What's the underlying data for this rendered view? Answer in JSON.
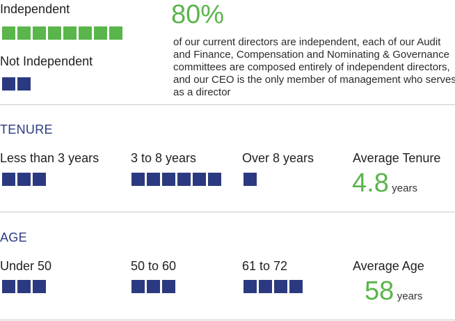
{
  "independence": {
    "independent_label": "Independent",
    "independent_count": 8,
    "not_independent_label": "Not Independent",
    "not_independent_count": 2,
    "percent": "80%",
    "description": "of our current directors are independent, each of our Audit and Finance, Compensation and Nominating & Governance committees are composed entirely of independent directors, and our CEO is the only member of management who serves as a director"
  },
  "tenure": {
    "title": "TENURE",
    "groups": [
      {
        "label": "Less than 3 years",
        "count": 3
      },
      {
        "label": "3 to 8 years",
        "count": 6
      },
      {
        "label": "Over 8 years",
        "count": 1
      }
    ],
    "average_label": "Average Tenure",
    "average_value": "4.8",
    "average_units": "years"
  },
  "age": {
    "title": "AGE",
    "groups": [
      {
        "label": "Under 50",
        "count": 3
      },
      {
        "label": "50 to 60",
        "count": 3
      },
      {
        "label": "61 to 72",
        "count": 4
      }
    ],
    "average_label": "Average Age",
    "average_value": "58",
    "average_units": "years"
  },
  "colors": {
    "green": "#5ab54b",
    "navy": "#2b3a80"
  }
}
